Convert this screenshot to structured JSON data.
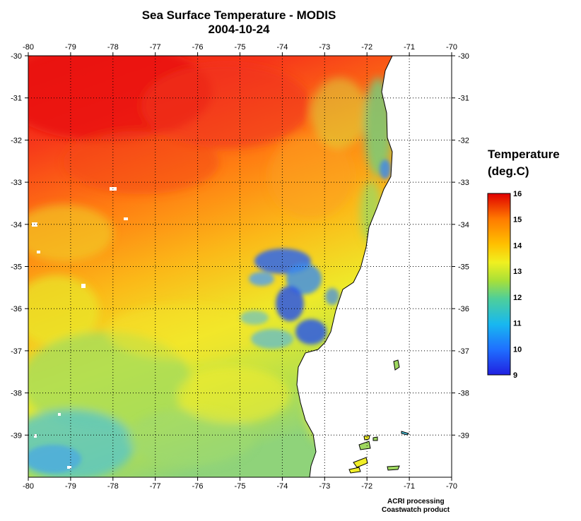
{
  "title": "Sea Surface Temperature - MODIS",
  "date": "2004-10-24",
  "legend": {
    "title_line1": "Temperature",
    "title_line2": "(deg.C)",
    "ticks": [
      "16",
      "15",
      "14",
      "13",
      "12",
      "11",
      "10",
      "9"
    ],
    "colors": [
      "#2020e0",
      "#1f6fff",
      "#18b8f0",
      "#4ecf9a",
      "#a8e038",
      "#f0f020",
      "#ffc000",
      "#ff7a00",
      "#ff2000",
      "#e00000"
    ]
  },
  "credits": [
    "ACRI processing",
    "Coastwatch product"
  ],
  "map": {
    "lon_range": [
      -80,
      -70
    ],
    "lat_range": [
      -40,
      -30
    ],
    "lon_labels": [
      "-80",
      "-79",
      "-78",
      "-77",
      "-76",
      "-75",
      "-74",
      "-73",
      "-72",
      "-71",
      "-70"
    ],
    "lat_labels": [
      "-30",
      "-31",
      "-32",
      "-33",
      "-34",
      "-35",
      "-36",
      "-37",
      "-38",
      "-39"
    ],
    "grid": true,
    "grid_style": "dotted",
    "ocean_colors": {
      "warm_red": "#f32814",
      "orange": "#ff7c10",
      "yellow_orange": "#fbbd13",
      "yellow": "#f0ee28",
      "green": "#9fd860",
      "cyan": "#4ec7e0",
      "blue": "#2a55e8"
    }
  }
}
